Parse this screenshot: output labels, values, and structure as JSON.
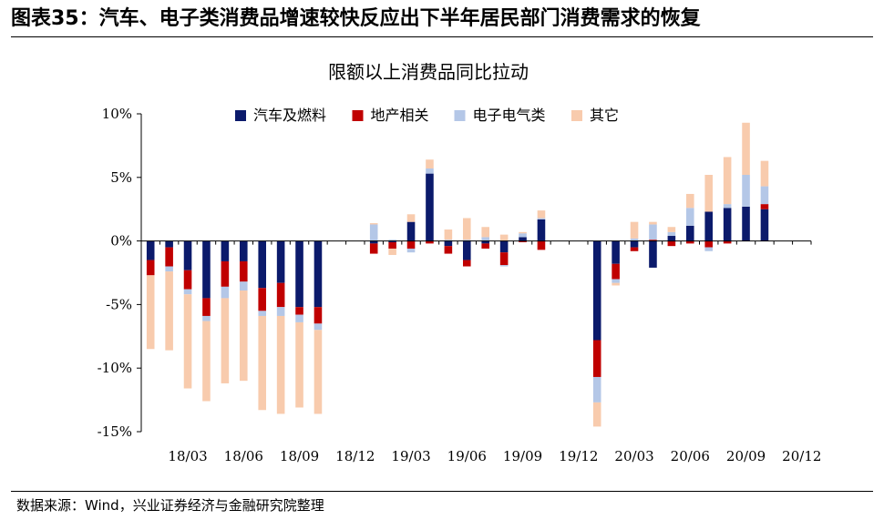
{
  "figure": {
    "header": "图表35：汽车、电子类消费品增速较快反应出下半年居民部门消费需求的恢复",
    "source": "数据来源：Wind，兴业证券经济与金融研究院整理"
  },
  "chart_data": {
    "type": "bar",
    "stacked": true,
    "title": "限额以上消费品同比拉动",
    "ylim": [
      -15,
      10
    ],
    "yticks": [
      10,
      5,
      0,
      -5,
      -10,
      -15
    ],
    "ytick_labels": [
      "10%",
      "5%",
      "0%",
      "-5%",
      "-10%",
      "-15%"
    ],
    "xtick_labels": [
      "18/03",
      "18/06",
      "18/09",
      "18/12",
      "19/03",
      "19/06",
      "19/09",
      "19/12",
      "20/03",
      "20/06",
      "20/09",
      "20/12"
    ],
    "xtick_periods": [
      2,
      5,
      8,
      11,
      14,
      17,
      20,
      23,
      26,
      29,
      32,
      35
    ],
    "legend_position": "top",
    "grid": false,
    "categories": [
      "18/01",
      "18/02",
      "18/03",
      "18/04",
      "18/05",
      "18/06",
      "18/07",
      "18/08",
      "18/09",
      "18/10",
      "18/11",
      "18/12",
      "19/01",
      "19/02",
      "19/03",
      "19/04",
      "19/05",
      "19/06",
      "19/07",
      "19/08",
      "19/09",
      "19/10",
      "19/11",
      "19/12",
      "20/01",
      "20/02",
      "20/03",
      "20/04",
      "20/05",
      "20/06",
      "20/07",
      "20/08",
      "20/09",
      "20/10",
      "20/11",
      "20/12"
    ],
    "series": [
      {
        "name": "汽车及燃料",
        "color": "#0B1A6B",
        "values": [
          -1.5,
          -0.5,
          -2.3,
          -4.5,
          -1.6,
          -1.6,
          -3.7,
          -3.3,
          -5.2,
          -5.2,
          0,
          0,
          -0.2,
          -0.1,
          1.5,
          5.3,
          -0.4,
          -1.5,
          -0.2,
          -0.9,
          0.3,
          1.7,
          0,
          0,
          -7.8,
          -1.8,
          -0.5,
          -2.1,
          0.4,
          1.2,
          2.3,
          2.6,
          2.7,
          2.5,
          0,
          0
        ]
      },
      {
        "name": "地产相关",
        "color": "#C00000",
        "values": [
          -1.2,
          -1.5,
          -1.5,
          -1.4,
          -2.0,
          -1.6,
          -1.8,
          -1.9,
          -0.6,
          -1.3,
          0,
          0,
          -0.8,
          -0.5,
          -0.6,
          -0.2,
          -0.6,
          -0.5,
          -0.4,
          -1.0,
          -0.1,
          -0.7,
          0,
          0,
          -2.9,
          -1.2,
          -0.3,
          0.1,
          -0.4,
          -0.2,
          -0.5,
          -0.2,
          0,
          0.4,
          0,
          0
        ]
      },
      {
        "name": "电子电气类",
        "color": "#B4C7E7",
        "values": [
          0,
          -0.4,
          -0.4,
          -0.4,
          -0.9,
          -0.7,
          -0.4,
          -0.7,
          -0.6,
          -0.5,
          0,
          0,
          1.3,
          0.1,
          -0.3,
          0.4,
          0.1,
          0.1,
          0.3,
          -0.1,
          0.3,
          0.1,
          0,
          0,
          -2.0,
          -0.3,
          0.2,
          1.2,
          0.3,
          1.4,
          -0.3,
          0.3,
          2.5,
          1.4,
          0,
          0
        ]
      },
      {
        "name": "其它",
        "color": "#F8CBAD",
        "values": [
          -5.8,
          -6.2,
          -7.4,
          -6.3,
          -6.7,
          -7.1,
          -7.4,
          -7.7,
          -6.7,
          -6.6,
          0,
          0,
          0.1,
          -0.5,
          0.6,
          0.7,
          0.8,
          1.7,
          0.8,
          0.5,
          0.1,
          0.6,
          0,
          0,
          -1.9,
          -0.2,
          1.3,
          0.2,
          0.4,
          1.1,
          2.9,
          3.7,
          4.1,
          2.0,
          0,
          0
        ]
      }
    ]
  }
}
